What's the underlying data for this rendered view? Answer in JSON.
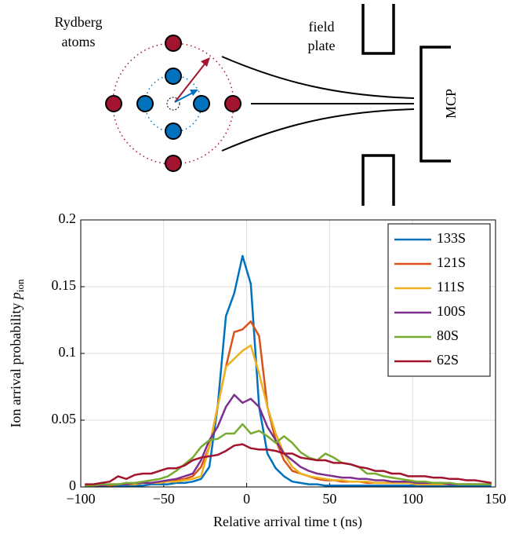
{
  "diagram": {
    "labels": [
      "Rydberg",
      "atoms",
      "field",
      "plate",
      "MCP"
    ]
  },
  "chart_data": {
    "type": "line",
    "xlabel": "Relative arrival time t (ns)",
    "ylabel": {
      "text": "Ion arrival probability",
      "symbol": "p",
      "subscript": "ion"
    },
    "xlim": [
      -100,
      150
    ],
    "ylim": [
      0,
      0.2
    ],
    "xticks": [
      {
        "value": -100,
        "label": "−100"
      },
      {
        "value": -50,
        "label": "−50"
      },
      0,
      50,
      100,
      150
    ],
    "yticks": [
      0,
      0.05,
      0.1,
      0.15,
      0.2
    ],
    "grid": true,
    "legend": "upper right",
    "x": [
      -97.5,
      -92.5,
      -87.5,
      -82.5,
      -77.5,
      -72.5,
      -67.5,
      -62.5,
      -57.5,
      -52.5,
      -47.5,
      -42.5,
      -37.5,
      -32.5,
      -27.5,
      -22.5,
      -17.5,
      -12.5,
      -7.5,
      -2.5,
      2.5,
      7.5,
      12.5,
      17.5,
      22.5,
      27.5,
      32.5,
      37.5,
      42.5,
      47.5,
      52.5,
      57.5,
      62.5,
      67.5,
      72.5,
      77.5,
      82.5,
      87.5,
      92.5,
      97.5,
      102.5,
      107.5,
      112.5,
      117.5,
      122.5,
      127.5,
      132.5,
      137.5,
      142.5,
      147.5
    ],
    "series": [
      {
        "name": "133S",
        "color": "#0072bd",
        "values": [
          0.001,
          0.001,
          0.001,
          0.001,
          0.001,
          0.001,
          0.001,
          0.001,
          0.002,
          0.002,
          0.002,
          0.003,
          0.003,
          0.004,
          0.006,
          0.015,
          0.06,
          0.128,
          0.145,
          0.173,
          0.152,
          0.06,
          0.025,
          0.014,
          0.008,
          0.004,
          0.003,
          0.002,
          0.002,
          0.001,
          0.001,
          0.001,
          0.001,
          0.001,
          0.001,
          0.001,
          0.001,
          0.001,
          0.001,
          0.001,
          0.001,
          0.001,
          0.001,
          0.001,
          0.001,
          0.001,
          0.001,
          0.001,
          0.001,
          0.001
        ]
      },
      {
        "name": "121S",
        "color": "#d95319",
        "values": [
          0.001,
          0.001,
          0.002,
          0.001,
          0.002,
          0.002,
          0.002,
          0.003,
          0.003,
          0.004,
          0.004,
          0.005,
          0.006,
          0.008,
          0.015,
          0.03,
          0.06,
          0.09,
          0.116,
          0.118,
          0.124,
          0.113,
          0.06,
          0.035,
          0.02,
          0.012,
          0.01,
          0.008,
          0.006,
          0.005,
          0.005,
          0.004,
          0.004,
          0.004,
          0.003,
          0.003,
          0.003,
          0.003,
          0.003,
          0.003,
          0.002,
          0.002,
          0.002,
          0.002,
          0.002,
          0.002,
          0.002,
          0.002,
          0.002,
          0.002
        ]
      },
      {
        "name": "111S",
        "color": "#edb120",
        "values": [
          0.001,
          0.001,
          0.001,
          0.002,
          0.002,
          0.002,
          0.002,
          0.003,
          0.003,
          0.003,
          0.004,
          0.004,
          0.005,
          0.006,
          0.008,
          0.03,
          0.06,
          0.09,
          0.096,
          0.102,
          0.106,
          0.085,
          0.06,
          0.04,
          0.025,
          0.015,
          0.01,
          0.008,
          0.007,
          0.006,
          0.005,
          0.005,
          0.004,
          0.004,
          0.004,
          0.003,
          0.003,
          0.003,
          0.003,
          0.003,
          0.002,
          0.002,
          0.002,
          0.002,
          0.002,
          0.002,
          0.002,
          0.002,
          0.002,
          0.002
        ]
      },
      {
        "name": "100S",
        "color": "#7e2f8e",
        "values": [
          0.001,
          0.001,
          0.001,
          0.002,
          0.002,
          0.002,
          0.003,
          0.003,
          0.003,
          0.004,
          0.005,
          0.006,
          0.008,
          0.01,
          0.02,
          0.035,
          0.045,
          0.06,
          0.069,
          0.063,
          0.066,
          0.06,
          0.045,
          0.035,
          0.025,
          0.02,
          0.015,
          0.012,
          0.01,
          0.009,
          0.008,
          0.007,
          0.007,
          0.006,
          0.006,
          0.005,
          0.005,
          0.004,
          0.004,
          0.004,
          0.003,
          0.003,
          0.003,
          0.003,
          0.002,
          0.002,
          0.002,
          0.002,
          0.002,
          0.002
        ]
      },
      {
        "name": "80S",
        "color": "#77ac30",
        "values": [
          0.001,
          0.001,
          0.002,
          0.002,
          0.002,
          0.003,
          0.003,
          0.004,
          0.005,
          0.006,
          0.008,
          0.012,
          0.017,
          0.022,
          0.03,
          0.035,
          0.036,
          0.04,
          0.04,
          0.047,
          0.04,
          0.042,
          0.038,
          0.033,
          0.038,
          0.033,
          0.026,
          0.022,
          0.02,
          0.025,
          0.022,
          0.018,
          0.017,
          0.015,
          0.01,
          0.01,
          0.008,
          0.007,
          0.006,
          0.005,
          0.004,
          0.004,
          0.003,
          0.003,
          0.003,
          0.002,
          0.002,
          0.002,
          0.002,
          0.002
        ]
      },
      {
        "name": "62S",
        "color": "#a2142f",
        "values": [
          0.002,
          0.002,
          0.003,
          0.004,
          0.008,
          0.006,
          0.009,
          0.01,
          0.01,
          0.012,
          0.014,
          0.014,
          0.016,
          0.02,
          0.022,
          0.023,
          0.024,
          0.027,
          0.031,
          0.032,
          0.029,
          0.028,
          0.028,
          0.027,
          0.025,
          0.025,
          0.022,
          0.021,
          0.02,
          0.02,
          0.018,
          0.018,
          0.017,
          0.015,
          0.014,
          0.012,
          0.012,
          0.01,
          0.01,
          0.008,
          0.008,
          0.008,
          0.007,
          0.007,
          0.006,
          0.006,
          0.005,
          0.005,
          0.004,
          0.003
        ]
      }
    ]
  }
}
